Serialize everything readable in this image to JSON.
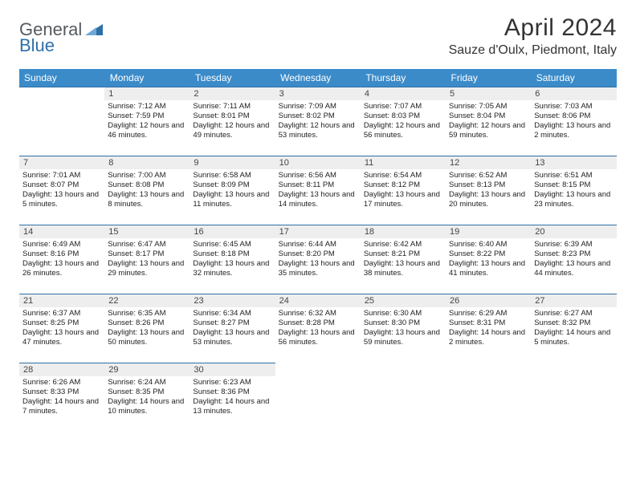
{
  "logo": {
    "general": "General",
    "blue": "Blue",
    "triangle_color": "#2f6fa7"
  },
  "header": {
    "month_title": "April 2024",
    "location": "Sauze d'Oulx, Piedmont, Italy"
  },
  "colors": {
    "header_bg": "#3b8bc9",
    "header_text": "#ffffff",
    "cell_border": "#2f6fa7",
    "daynum_bg": "#eeeeee",
    "text": "#222222"
  },
  "daynames": [
    "Sunday",
    "Monday",
    "Tuesday",
    "Wednesday",
    "Thursday",
    "Friday",
    "Saturday"
  ],
  "weeks": [
    [
      {
        "n": "",
        "sr": "",
        "ss": "",
        "dl": ""
      },
      {
        "n": "1",
        "sr": "Sunrise: 7:12 AM",
        "ss": "Sunset: 7:59 PM",
        "dl": "Daylight: 12 hours and 46 minutes."
      },
      {
        "n": "2",
        "sr": "Sunrise: 7:11 AM",
        "ss": "Sunset: 8:01 PM",
        "dl": "Daylight: 12 hours and 49 minutes."
      },
      {
        "n": "3",
        "sr": "Sunrise: 7:09 AM",
        "ss": "Sunset: 8:02 PM",
        "dl": "Daylight: 12 hours and 53 minutes."
      },
      {
        "n": "4",
        "sr": "Sunrise: 7:07 AM",
        "ss": "Sunset: 8:03 PM",
        "dl": "Daylight: 12 hours and 56 minutes."
      },
      {
        "n": "5",
        "sr": "Sunrise: 7:05 AM",
        "ss": "Sunset: 8:04 PM",
        "dl": "Daylight: 12 hours and 59 minutes."
      },
      {
        "n": "6",
        "sr": "Sunrise: 7:03 AM",
        "ss": "Sunset: 8:06 PM",
        "dl": "Daylight: 13 hours and 2 minutes."
      }
    ],
    [
      {
        "n": "7",
        "sr": "Sunrise: 7:01 AM",
        "ss": "Sunset: 8:07 PM",
        "dl": "Daylight: 13 hours and 5 minutes."
      },
      {
        "n": "8",
        "sr": "Sunrise: 7:00 AM",
        "ss": "Sunset: 8:08 PM",
        "dl": "Daylight: 13 hours and 8 minutes."
      },
      {
        "n": "9",
        "sr": "Sunrise: 6:58 AM",
        "ss": "Sunset: 8:09 PM",
        "dl": "Daylight: 13 hours and 11 minutes."
      },
      {
        "n": "10",
        "sr": "Sunrise: 6:56 AM",
        "ss": "Sunset: 8:11 PM",
        "dl": "Daylight: 13 hours and 14 minutes."
      },
      {
        "n": "11",
        "sr": "Sunrise: 6:54 AM",
        "ss": "Sunset: 8:12 PM",
        "dl": "Daylight: 13 hours and 17 minutes."
      },
      {
        "n": "12",
        "sr": "Sunrise: 6:52 AM",
        "ss": "Sunset: 8:13 PM",
        "dl": "Daylight: 13 hours and 20 minutes."
      },
      {
        "n": "13",
        "sr": "Sunrise: 6:51 AM",
        "ss": "Sunset: 8:15 PM",
        "dl": "Daylight: 13 hours and 23 minutes."
      }
    ],
    [
      {
        "n": "14",
        "sr": "Sunrise: 6:49 AM",
        "ss": "Sunset: 8:16 PM",
        "dl": "Daylight: 13 hours and 26 minutes."
      },
      {
        "n": "15",
        "sr": "Sunrise: 6:47 AM",
        "ss": "Sunset: 8:17 PM",
        "dl": "Daylight: 13 hours and 29 minutes."
      },
      {
        "n": "16",
        "sr": "Sunrise: 6:45 AM",
        "ss": "Sunset: 8:18 PM",
        "dl": "Daylight: 13 hours and 32 minutes."
      },
      {
        "n": "17",
        "sr": "Sunrise: 6:44 AM",
        "ss": "Sunset: 8:20 PM",
        "dl": "Daylight: 13 hours and 35 minutes."
      },
      {
        "n": "18",
        "sr": "Sunrise: 6:42 AM",
        "ss": "Sunset: 8:21 PM",
        "dl": "Daylight: 13 hours and 38 minutes."
      },
      {
        "n": "19",
        "sr": "Sunrise: 6:40 AM",
        "ss": "Sunset: 8:22 PM",
        "dl": "Daylight: 13 hours and 41 minutes."
      },
      {
        "n": "20",
        "sr": "Sunrise: 6:39 AM",
        "ss": "Sunset: 8:23 PM",
        "dl": "Daylight: 13 hours and 44 minutes."
      }
    ],
    [
      {
        "n": "21",
        "sr": "Sunrise: 6:37 AM",
        "ss": "Sunset: 8:25 PM",
        "dl": "Daylight: 13 hours and 47 minutes."
      },
      {
        "n": "22",
        "sr": "Sunrise: 6:35 AM",
        "ss": "Sunset: 8:26 PM",
        "dl": "Daylight: 13 hours and 50 minutes."
      },
      {
        "n": "23",
        "sr": "Sunrise: 6:34 AM",
        "ss": "Sunset: 8:27 PM",
        "dl": "Daylight: 13 hours and 53 minutes."
      },
      {
        "n": "24",
        "sr": "Sunrise: 6:32 AM",
        "ss": "Sunset: 8:28 PM",
        "dl": "Daylight: 13 hours and 56 minutes."
      },
      {
        "n": "25",
        "sr": "Sunrise: 6:30 AM",
        "ss": "Sunset: 8:30 PM",
        "dl": "Daylight: 13 hours and 59 minutes."
      },
      {
        "n": "26",
        "sr": "Sunrise: 6:29 AM",
        "ss": "Sunset: 8:31 PM",
        "dl": "Daylight: 14 hours and 2 minutes."
      },
      {
        "n": "27",
        "sr": "Sunrise: 6:27 AM",
        "ss": "Sunset: 8:32 PM",
        "dl": "Daylight: 14 hours and 5 minutes."
      }
    ],
    [
      {
        "n": "28",
        "sr": "Sunrise: 6:26 AM",
        "ss": "Sunset: 8:33 PM",
        "dl": "Daylight: 14 hours and 7 minutes."
      },
      {
        "n": "29",
        "sr": "Sunrise: 6:24 AM",
        "ss": "Sunset: 8:35 PM",
        "dl": "Daylight: 14 hours and 10 minutes."
      },
      {
        "n": "30",
        "sr": "Sunrise: 6:23 AM",
        "ss": "Sunset: 8:36 PM",
        "dl": "Daylight: 14 hours and 13 minutes."
      },
      {
        "n": "",
        "sr": "",
        "ss": "",
        "dl": ""
      },
      {
        "n": "",
        "sr": "",
        "ss": "",
        "dl": ""
      },
      {
        "n": "",
        "sr": "",
        "ss": "",
        "dl": ""
      },
      {
        "n": "",
        "sr": "",
        "ss": "",
        "dl": ""
      }
    ]
  ]
}
